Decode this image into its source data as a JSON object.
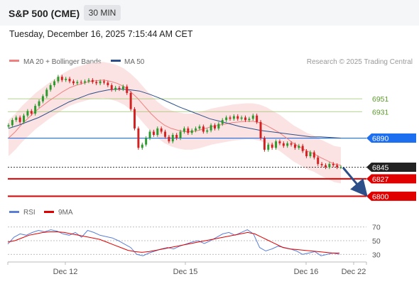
{
  "header": {
    "title": "S&P 500 (CME)",
    "timeframe": "30 MIN",
    "timestamp": "Tuesday, December 16, 2025 7:15:44 AM CET"
  },
  "chart_data": {
    "type": "candlestick",
    "watermark": "Research © 2025 Trading Central",
    "legend": [
      {
        "label": "MA 20 + Bollinger Bands",
        "color": "#f08080"
      },
      {
        "label": "MA 50",
        "color": "#2c4f8a"
      }
    ],
    "x_tick_labels": [
      "Dec 12",
      "Dec 15",
      "Dec 16",
      "Dec 22"
    ],
    "price_axis": {
      "ylim": [
        6796,
        6994
      ]
    },
    "levels": [
      {
        "value": 6951,
        "label": "6951",
        "color": "#9bc46a",
        "style": "thin",
        "badge": false
      },
      {
        "value": 6931,
        "label": "6931",
        "color": "#9bc46a",
        "style": "thin",
        "badge": false
      },
      {
        "value": 6890,
        "label": "6890",
        "color": "#1e6ff0",
        "style": "line",
        "badge": true
      },
      {
        "value": 6845,
        "label": "6845",
        "color": "#222222",
        "style": "dotted",
        "badge": true
      },
      {
        "value": 6827,
        "label": "6827",
        "color": "#e00000",
        "style": "thick",
        "badge": true
      },
      {
        "value": 6800,
        "label": "6800",
        "color": "#e00000",
        "style": "thick",
        "badge": true
      }
    ],
    "price_series": {
      "close": [
        6910,
        6918,
        6922,
        6915,
        6925,
        6932,
        6928,
        6940,
        6947,
        6955,
        6965,
        6972,
        6978,
        6985,
        6980,
        6982,
        6978,
        6975,
        6977,
        6976,
        6978,
        6980,
        6977,
        6975,
        6978,
        6976,
        6972,
        6965,
        6968,
        6966,
        6970,
        6960,
        6935,
        6905,
        6875,
        6880,
        6890,
        6900,
        6895,
        6905,
        6900,
        6892,
        6885,
        6895,
        6890,
        6900,
        6905,
        6898,
        6902,
        6905,
        6908,
        6900,
        6902,
        6910,
        6905,
        6912,
        6918,
        6922,
        6920,
        6924,
        6920,
        6922,
        6918,
        6920,
        6925,
        6915,
        6890,
        6872,
        6880,
        6875,
        6885,
        6882,
        6878,
        6882,
        6880,
        6875,
        6878,
        6870,
        6862,
        6868,
        6860,
        6850,
        6848,
        6845,
        6850,
        6848,
        6845,
        6845
      ]
    },
    "ma20": [
      6890,
      6900,
      6912,
      6922,
      6932,
      6940,
      6948,
      6955,
      6962,
      6968,
      6972,
      6975,
      6978,
      6979,
      6980,
      6978,
      6975,
      6970,
      6962,
      6952,
      6940,
      6928,
      6918,
      6910,
      6905,
      6902,
      6900,
      6900,
      6902,
      6905,
      6908,
      6910,
      6912,
      6914,
      6915,
      6916,
      6916,
      6914,
      6910,
      6904,
      6898,
      6890,
      6882,
      6876,
      6870,
      6866,
      6860,
      6855,
      6850,
      6848
    ],
    "ma50": [
      6905,
      6910,
      6916,
      6922,
      6930,
      6938,
      6946,
      6952,
      6958,
      6962,
      6965,
      6966,
      6965,
      6963,
      6958,
      6952,
      6945,
      6938,
      6932,
      6926,
      6920,
      6916,
      6912,
      6908,
      6905,
      6902,
      6900,
      6898,
      6896,
      6894,
      6892,
      6892,
      6891,
      6890
    ],
    "rsi_panel": {
      "legend": [
        {
          "label": "RSI",
          "color": "#5b7fd6"
        },
        {
          "label": "9MA",
          "color": "#e00000"
        }
      ],
      "levels": [
        70,
        50,
        30
      ],
      "ylim": [
        22,
        78
      ],
      "rsi": [
        45,
        55,
        60,
        58,
        62,
        65,
        63,
        66,
        64,
        60,
        58,
        62,
        55,
        65,
        62,
        58,
        56,
        54,
        50,
        45,
        40,
        30,
        28,
        32,
        35,
        38,
        40,
        38,
        42,
        45,
        48,
        50,
        46,
        50,
        55,
        60,
        62,
        58,
        62,
        66,
        60,
        40,
        35,
        38,
        42,
        40,
        38,
        35,
        30,
        32,
        34,
        28,
        30,
        32,
        30
      ],
      "ma9": [
        48,
        50,
        54,
        58,
        60,
        62,
        63,
        63,
        62,
        60,
        58,
        56,
        54,
        52,
        48,
        44,
        40,
        36,
        34,
        33,
        34,
        36,
        38,
        40,
        42,
        44,
        46,
        48,
        50,
        52,
        54,
        56,
        58,
        60,
        62,
        60,
        55,
        50,
        45,
        40,
        38,
        37,
        36,
        35,
        34,
        33,
        32,
        32
      ]
    }
  }
}
